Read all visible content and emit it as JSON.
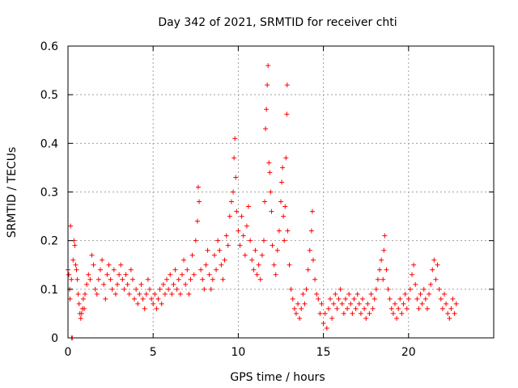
{
  "chart_data": {
    "type": "scatter",
    "title": "Day 342 of 2021, SRMTID for receiver chti",
    "xlabel": "GPS time / hours",
    "ylabel": "SRMTID / TECUs",
    "xlim": [
      0,
      25
    ],
    "ylim": [
      0,
      0.6
    ],
    "xticks": [
      0,
      5,
      10,
      15,
      20
    ],
    "yticks": [
      0,
      0.1,
      0.2,
      0.3,
      0.4,
      0.5,
      0.6
    ],
    "xtick_labels": [
      "0",
      "5",
      "10",
      "15",
      "20"
    ],
    "ytick_labels": [
      "0",
      "0.1",
      "0.2",
      "0.3",
      "0.4",
      "0.5",
      "0.6"
    ],
    "grid": true,
    "marker": "+",
    "color": "#ff0000",
    "series": [
      {
        "name": "SRMTID",
        "points": [
          [
            0.0,
            0.14
          ],
          [
            0.05,
            0.13
          ],
          [
            0.1,
            0.1
          ],
          [
            0.12,
            0.08
          ],
          [
            0.15,
            0.23
          ],
          [
            0.2,
            0.12
          ],
          [
            0.22,
            0.0
          ],
          [
            0.25,
            0.0
          ],
          [
            0.3,
            0.16
          ],
          [
            0.35,
            0.2
          ],
          [
            0.4,
            0.19
          ],
          [
            0.45,
            0.15
          ],
          [
            0.5,
            0.14
          ],
          [
            0.55,
            0.12
          ],
          [
            0.6,
            0.09
          ],
          [
            0.65,
            0.07
          ],
          [
            0.7,
            0.05
          ],
          [
            0.75,
            0.04
          ],
          [
            0.8,
            0.05
          ],
          [
            0.85,
            0.06
          ],
          [
            0.9,
            0.08
          ],
          [
            0.95,
            0.06
          ],
          [
            1.0,
            0.09
          ],
          [
            1.1,
            0.11
          ],
          [
            1.2,
            0.13
          ],
          [
            1.3,
            0.12
          ],
          [
            1.4,
            0.17
          ],
          [
            1.5,
            0.15
          ],
          [
            1.6,
            0.1
          ],
          [
            1.7,
            0.09
          ],
          [
            1.8,
            0.12
          ],
          [
            1.9,
            0.14
          ],
          [
            2.0,
            0.16
          ],
          [
            2.1,
            0.11
          ],
          [
            2.2,
            0.08
          ],
          [
            2.3,
            0.13
          ],
          [
            2.4,
            0.15
          ],
          [
            2.5,
            0.12
          ],
          [
            2.6,
            0.1
          ],
          [
            2.7,
            0.14
          ],
          [
            2.8,
            0.09
          ],
          [
            2.9,
            0.11
          ],
          [
            3.0,
            0.13
          ],
          [
            3.1,
            0.15
          ],
          [
            3.2,
            0.12
          ],
          [
            3.3,
            0.1
          ],
          [
            3.4,
            0.13
          ],
          [
            3.5,
            0.11
          ],
          [
            3.6,
            0.09
          ],
          [
            3.7,
            0.14
          ],
          [
            3.8,
            0.12
          ],
          [
            3.9,
            0.08
          ],
          [
            4.0,
            0.1
          ],
          [
            4.1,
            0.07
          ],
          [
            4.2,
            0.09
          ],
          [
            4.3,
            0.11
          ],
          [
            4.4,
            0.08
          ],
          [
            4.5,
            0.06
          ],
          [
            4.6,
            0.09
          ],
          [
            4.7,
            0.12
          ],
          [
            4.8,
            0.1
          ],
          [
            4.9,
            0.08
          ],
          [
            5.0,
            0.07
          ],
          [
            5.1,
            0.09
          ],
          [
            5.2,
            0.06
          ],
          [
            5.3,
            0.08
          ],
          [
            5.4,
            0.1
          ],
          [
            5.5,
            0.07
          ],
          [
            5.6,
            0.11
          ],
          [
            5.7,
            0.09
          ],
          [
            5.8,
            0.12
          ],
          [
            5.9,
            0.1
          ],
          [
            6.0,
            0.13
          ],
          [
            6.1,
            0.09
          ],
          [
            6.2,
            0.11
          ],
          [
            6.3,
            0.14
          ],
          [
            6.4,
            0.1
          ],
          [
            6.5,
            0.12
          ],
          [
            6.6,
            0.09
          ],
          [
            6.7,
            0.13
          ],
          [
            6.8,
            0.16
          ],
          [
            6.9,
            0.11
          ],
          [
            7.0,
            0.14
          ],
          [
            7.1,
            0.09
          ],
          [
            7.2,
            0.12
          ],
          [
            7.3,
            0.17
          ],
          [
            7.4,
            0.13
          ],
          [
            7.5,
            0.2
          ],
          [
            7.6,
            0.24
          ],
          [
            7.65,
            0.31
          ],
          [
            7.7,
            0.28
          ],
          [
            7.8,
            0.14
          ],
          [
            7.9,
            0.12
          ],
          [
            8.0,
            0.1
          ],
          [
            8.1,
            0.15
          ],
          [
            8.2,
            0.18
          ],
          [
            8.3,
            0.13
          ],
          [
            8.4,
            0.1
          ],
          [
            8.5,
            0.12
          ],
          [
            8.6,
            0.17
          ],
          [
            8.7,
            0.14
          ],
          [
            8.8,
            0.2
          ],
          [
            8.9,
            0.18
          ],
          [
            9.0,
            0.15
          ],
          [
            9.1,
            0.12
          ],
          [
            9.2,
            0.16
          ],
          [
            9.3,
            0.21
          ],
          [
            9.4,
            0.19
          ],
          [
            9.5,
            0.25
          ],
          [
            9.6,
            0.28
          ],
          [
            9.7,
            0.3
          ],
          [
            9.75,
            0.37
          ],
          [
            9.8,
            0.41
          ],
          [
            9.85,
            0.33
          ],
          [
            9.9,
            0.26
          ],
          [
            10.0,
            0.22
          ],
          [
            10.1,
            0.19
          ],
          [
            10.2,
            0.25
          ],
          [
            10.3,
            0.21
          ],
          [
            10.4,
            0.17
          ],
          [
            10.5,
            0.23
          ],
          [
            10.6,
            0.27
          ],
          [
            10.7,
            0.2
          ],
          [
            10.8,
            0.16
          ],
          [
            10.9,
            0.14
          ],
          [
            11.0,
            0.18
          ],
          [
            11.1,
            0.13
          ],
          [
            11.2,
            0.15
          ],
          [
            11.3,
            0.12
          ],
          [
            11.4,
            0.17
          ],
          [
            11.5,
            0.2
          ],
          [
            11.55,
            0.28
          ],
          [
            11.6,
            0.43
          ],
          [
            11.65,
            0.47
          ],
          [
            11.7,
            0.52
          ],
          [
            11.75,
            0.56
          ],
          [
            11.8,
            0.36
          ],
          [
            11.85,
            0.34
          ],
          [
            11.9,
            0.3
          ],
          [
            11.95,
            0.26
          ],
          [
            12.0,
            0.19
          ],
          [
            12.1,
            0.15
          ],
          [
            12.2,
            0.13
          ],
          [
            12.3,
            0.18
          ],
          [
            12.4,
            0.22
          ],
          [
            12.5,
            0.28
          ],
          [
            12.55,
            0.32
          ],
          [
            12.6,
            0.35
          ],
          [
            12.65,
            0.25
          ],
          [
            12.7,
            0.2
          ],
          [
            12.75,
            0.27
          ],
          [
            12.8,
            0.37
          ],
          [
            12.85,
            0.46
          ],
          [
            12.87,
            0.52
          ],
          [
            12.9,
            0.22
          ],
          [
            13.0,
            0.15
          ],
          [
            13.1,
            0.1
          ],
          [
            13.2,
            0.08
          ],
          [
            13.3,
            0.06
          ],
          [
            13.4,
            0.05
          ],
          [
            13.5,
            0.07
          ],
          [
            13.6,
            0.04
          ],
          [
            13.7,
            0.06
          ],
          [
            13.8,
            0.09
          ],
          [
            13.9,
            0.07
          ],
          [
            14.0,
            0.1
          ],
          [
            14.1,
            0.14
          ],
          [
            14.2,
            0.18
          ],
          [
            14.3,
            0.22
          ],
          [
            14.35,
            0.26
          ],
          [
            14.4,
            0.16
          ],
          [
            14.5,
            0.12
          ],
          [
            14.6,
            0.09
          ],
          [
            14.7,
            0.08
          ],
          [
            14.8,
            0.05
          ],
          [
            14.9,
            0.07
          ],
          [
            15.0,
            0.03
          ],
          [
            15.1,
            0.05
          ],
          [
            15.2,
            0.02
          ],
          [
            15.3,
            0.06
          ],
          [
            15.4,
            0.08
          ],
          [
            15.5,
            0.04
          ],
          [
            15.6,
            0.07
          ],
          [
            15.7,
            0.09
          ],
          [
            15.8,
            0.06
          ],
          [
            15.9,
            0.08
          ],
          [
            16.0,
            0.1
          ],
          [
            16.1,
            0.07
          ],
          [
            16.2,
            0.05
          ],
          [
            16.3,
            0.08
          ],
          [
            16.4,
            0.06
          ],
          [
            16.5,
            0.09
          ],
          [
            16.6,
            0.07
          ],
          [
            16.7,
            0.05
          ],
          [
            16.8,
            0.08
          ],
          [
            16.9,
            0.06
          ],
          [
            17.0,
            0.09
          ],
          [
            17.1,
            0.07
          ],
          [
            17.2,
            0.05
          ],
          [
            17.3,
            0.08
          ],
          [
            17.4,
            0.06
          ],
          [
            17.5,
            0.04
          ],
          [
            17.6,
            0.07
          ],
          [
            17.7,
            0.05
          ],
          [
            17.8,
            0.09
          ],
          [
            17.9,
            0.06
          ],
          [
            18.0,
            0.08
          ],
          [
            18.1,
            0.1
          ],
          [
            18.2,
            0.12
          ],
          [
            18.3,
            0.14
          ],
          [
            18.4,
            0.16
          ],
          [
            18.5,
            0.12
          ],
          [
            18.55,
            0.18
          ],
          [
            18.6,
            0.21
          ],
          [
            18.7,
            0.14
          ],
          [
            18.8,
            0.1
          ],
          [
            18.9,
            0.08
          ],
          [
            19.0,
            0.06
          ],
          [
            19.1,
            0.05
          ],
          [
            19.2,
            0.07
          ],
          [
            19.3,
            0.04
          ],
          [
            19.4,
            0.06
          ],
          [
            19.5,
            0.08
          ],
          [
            19.6,
            0.05
          ],
          [
            19.7,
            0.07
          ],
          [
            19.8,
            0.09
          ],
          [
            19.9,
            0.06
          ],
          [
            20.0,
            0.08
          ],
          [
            20.1,
            0.1
          ],
          [
            20.2,
            0.13
          ],
          [
            20.3,
            0.15
          ],
          [
            20.4,
            0.11
          ],
          [
            20.5,
            0.08
          ],
          [
            20.6,
            0.06
          ],
          [
            20.7,
            0.09
          ],
          [
            20.8,
            0.07
          ],
          [
            20.9,
            0.1
          ],
          [
            21.0,
            0.08
          ],
          [
            21.1,
            0.06
          ],
          [
            21.2,
            0.09
          ],
          [
            21.3,
            0.11
          ],
          [
            21.4,
            0.14
          ],
          [
            21.5,
            0.16
          ],
          [
            21.6,
            0.12
          ],
          [
            21.7,
            0.15
          ],
          [
            21.8,
            0.1
          ],
          [
            21.9,
            0.08
          ],
          [
            22.0,
            0.06
          ],
          [
            22.1,
            0.09
          ],
          [
            22.2,
            0.07
          ],
          [
            22.3,
            0.05
          ],
          [
            22.4,
            0.04
          ],
          [
            22.5,
            0.06
          ],
          [
            22.6,
            0.08
          ],
          [
            22.7,
            0.05
          ],
          [
            22.8,
            0.07
          ]
        ]
      }
    ]
  }
}
